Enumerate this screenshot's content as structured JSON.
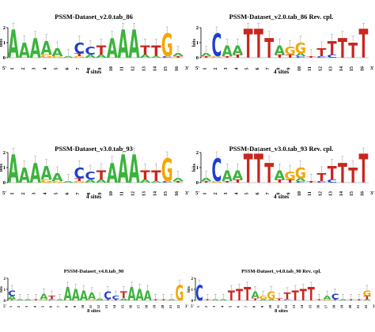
{
  "colors": {
    "A": "#3bb33b",
    "C": "#1d3fd1",
    "G": "#f2a700",
    "T": "#c8261e"
  },
  "axis": {
    "ylabel": "bits",
    "ticks": [
      "0",
      "1",
      "2"
    ],
    "five_prime": "5'",
    "three_prime": "3'"
  },
  "logos": [
    {
      "id": "v2-fwd",
      "title": "PSSM-Dataset_v2.0.tab_86",
      "sites": "4 sites",
      "positions": [
        [
          {
            "b": "A",
            "h": 1.9
          }
        ],
        [
          {
            "b": "A",
            "h": 1.0
          }
        ],
        [
          {
            "b": "A",
            "h": 1.3
          }
        ],
        [
          {
            "b": "A",
            "h": 0.9
          },
          {
            "b": "G",
            "h": 0.2
          }
        ],
        [
          {
            "b": "A",
            "h": 0.5
          },
          {
            "b": "G",
            "h": 0.1
          }
        ],
        [
          {
            "b": "A",
            "h": 0.1
          }
        ],
        [
          {
            "b": "C",
            "h": 0.7
          },
          {
            "b": "T",
            "h": 0.2
          },
          {
            "b": "G",
            "h": 0.1
          }
        ],
        [
          {
            "b": "C",
            "h": 0.5
          },
          {
            "b": "A",
            "h": 0.2
          }
        ],
        [
          {
            "b": "T",
            "h": 0.6
          },
          {
            "b": "A",
            "h": 0.2
          }
        ],
        [
          {
            "b": "A",
            "h": 1.3
          }
        ],
        [
          {
            "b": "A",
            "h": 1.9
          }
        ],
        [
          {
            "b": "A",
            "h": 1.9
          }
        ],
        [
          {
            "b": "T",
            "h": 0.6
          },
          {
            "b": "A",
            "h": 0.2
          }
        ],
        [
          {
            "b": "T",
            "h": 0.7
          },
          {
            "b": "A",
            "h": 0.1
          }
        ],
        [
          {
            "b": "G",
            "h": 1.5
          },
          {
            "b": "C",
            "h": 0.1
          }
        ],
        [
          {
            "b": "A",
            "h": 0.2
          },
          {
            "b": "T",
            "h": 0.1
          }
        ]
      ]
    },
    {
      "id": "v2-rev",
      "title": "PSSM-Dataset_v2.0.tab_86  Rev. cpl.",
      "sites": "4 sites",
      "positions": [
        [
          {
            "b": "A",
            "h": 0.2
          },
          {
            "b": "T",
            "h": 0.1
          }
        ],
        [
          {
            "b": "C",
            "h": 1.5
          },
          {
            "b": "G",
            "h": 0.1
          }
        ],
        [
          {
            "b": "A",
            "h": 0.7
          },
          {
            "b": "T",
            "h": 0.1
          }
        ],
        [
          {
            "b": "A",
            "h": 0.6
          },
          {
            "b": "T",
            "h": 0.2
          }
        ],
        [
          {
            "b": "T",
            "h": 1.9
          }
        ],
        [
          {
            "b": "T",
            "h": 1.9
          }
        ],
        [
          {
            "b": "T",
            "h": 1.3
          }
        ],
        [
          {
            "b": "A",
            "h": 0.6
          },
          {
            "b": "T",
            "h": 0.2
          }
        ],
        [
          {
            "b": "G",
            "h": 0.5
          },
          {
            "b": "T",
            "h": 0.2
          }
        ],
        [
          {
            "b": "G",
            "h": 0.7
          },
          {
            "b": "A",
            "h": 0.2
          },
          {
            "b": "C",
            "h": 0.1
          }
        ],
        [
          {
            "b": "T",
            "h": 0.1
          }
        ],
        [
          {
            "b": "T",
            "h": 0.5
          },
          {
            "b": "C",
            "h": 0.1
          }
        ],
        [
          {
            "b": "T",
            "h": 0.9
          },
          {
            "b": "C",
            "h": 0.2
          }
        ],
        [
          {
            "b": "T",
            "h": 1.3
          }
        ],
        [
          {
            "b": "T",
            "h": 1.0
          }
        ],
        [
          {
            "b": "T",
            "h": 1.9
          }
        ]
      ]
    },
    {
      "id": "v3-fwd",
      "title": "PSSM-Dataset_v3.0.tab_93",
      "sites": "4 sites",
      "positions": [
        [
          {
            "b": "A",
            "h": 1.9
          }
        ],
        [
          {
            "b": "A",
            "h": 1.0
          }
        ],
        [
          {
            "b": "A",
            "h": 1.3
          }
        ],
        [
          {
            "b": "A",
            "h": 0.9
          },
          {
            "b": "G",
            "h": 0.2
          }
        ],
        [
          {
            "b": "A",
            "h": 0.5
          },
          {
            "b": "G",
            "h": 0.1
          }
        ],
        [
          {
            "b": "A",
            "h": 0.1
          }
        ],
        [
          {
            "b": "C",
            "h": 0.7
          },
          {
            "b": "T",
            "h": 0.2
          },
          {
            "b": "G",
            "h": 0.1
          }
        ],
        [
          {
            "b": "C",
            "h": 0.5
          },
          {
            "b": "A",
            "h": 0.2
          }
        ],
        [
          {
            "b": "T",
            "h": 0.6
          },
          {
            "b": "A",
            "h": 0.2
          }
        ],
        [
          {
            "b": "A",
            "h": 1.3
          }
        ],
        [
          {
            "b": "A",
            "h": 1.9
          }
        ],
        [
          {
            "b": "A",
            "h": 1.9
          }
        ],
        [
          {
            "b": "T",
            "h": 0.6
          },
          {
            "b": "A",
            "h": 0.2
          }
        ],
        [
          {
            "b": "T",
            "h": 0.7
          },
          {
            "b": "A",
            "h": 0.1
          }
        ],
        [
          {
            "b": "G",
            "h": 1.5
          },
          {
            "b": "C",
            "h": 0.1
          }
        ],
        [
          {
            "b": "A",
            "h": 0.2
          },
          {
            "b": "T",
            "h": 0.1
          }
        ]
      ]
    },
    {
      "id": "v3-rev",
      "title": "PSSM-Dataset_v3.0.tab_93  Rev. cpl.",
      "sites": "4 sites",
      "positions": [
        [
          {
            "b": "A",
            "h": 0.2
          },
          {
            "b": "T",
            "h": 0.1
          }
        ],
        [
          {
            "b": "C",
            "h": 1.5
          },
          {
            "b": "G",
            "h": 0.1
          }
        ],
        [
          {
            "b": "A",
            "h": 0.7
          },
          {
            "b": "T",
            "h": 0.1
          }
        ],
        [
          {
            "b": "A",
            "h": 0.6
          },
          {
            "b": "T",
            "h": 0.2
          }
        ],
        [
          {
            "b": "T",
            "h": 1.9
          }
        ],
        [
          {
            "b": "T",
            "h": 1.9
          }
        ],
        [
          {
            "b": "T",
            "h": 1.3
          }
        ],
        [
          {
            "b": "A",
            "h": 0.6
          },
          {
            "b": "T",
            "h": 0.2
          }
        ],
        [
          {
            "b": "G",
            "h": 0.5
          },
          {
            "b": "T",
            "h": 0.2
          }
        ],
        [
          {
            "b": "G",
            "h": 0.7
          },
          {
            "b": "A",
            "h": 0.2
          },
          {
            "b": "C",
            "h": 0.1
          }
        ],
        [
          {
            "b": "T",
            "h": 0.1
          }
        ],
        [
          {
            "b": "T",
            "h": 0.5
          },
          {
            "b": "C",
            "h": 0.1
          }
        ],
        [
          {
            "b": "T",
            "h": 0.9
          },
          {
            "b": "C",
            "h": 0.2
          }
        ],
        [
          {
            "b": "T",
            "h": 1.3
          }
        ],
        [
          {
            "b": "T",
            "h": 1.0
          }
        ],
        [
          {
            "b": "T",
            "h": 1.9
          }
        ]
      ]
    },
    {
      "id": "v4-fwd",
      "title": "PSSM-Dataset_v4.0.tab_90",
      "sites": "8 sites",
      "positions": [
        [
          {
            "b": "C",
            "h": 0.5
          },
          {
            "b": "A",
            "h": 0.3
          },
          {
            "b": "T",
            "h": 0.1
          }
        ],
        [
          {
            "b": "A",
            "h": 0.1
          }
        ],
        [
          {
            "b": "A",
            "h": 0.1
          }
        ],
        [
          {
            "b": "T",
            "h": 0.1
          }
        ],
        [
          {
            "b": "A",
            "h": 0.5
          },
          {
            "b": "G",
            "h": 0.1
          }
        ],
        [
          {
            "b": "T",
            "h": 0.3
          },
          {
            "b": "C",
            "h": 0.1
          }
        ],
        [
          {
            "b": "A",
            "h": 0.1
          }
        ],
        [
          {
            "b": "A",
            "h": 1.2
          }
        ],
        [
          {
            "b": "A",
            "h": 1.0
          }
        ],
        [
          {
            "b": "A",
            "h": 0.9
          }
        ],
        [
          {
            "b": "A",
            "h": 0.6
          },
          {
            "b": "G",
            "h": 0.1
          }
        ],
        [
          {
            "b": "A",
            "h": 0.2
          }
        ],
        [
          {
            "b": "C",
            "h": 0.7
          },
          {
            "b": "T",
            "h": 0.1
          }
        ],
        [
          {
            "b": "C",
            "h": 0.3
          },
          {
            "b": "T",
            "h": 0.1
          }
        ],
        [
          {
            "b": "T",
            "h": 0.6
          },
          {
            "b": "A",
            "h": 0.2
          }
        ],
        [
          {
            "b": "A",
            "h": 1.2
          }
        ],
        [
          {
            "b": "A",
            "h": 1.0
          }
        ],
        [
          {
            "b": "A",
            "h": 0.9
          }
        ],
        [
          {
            "b": "T",
            "h": 0.1
          }
        ],
        [
          {
            "b": "T",
            "h": 0.1
          }
        ],
        [
          {
            "b": "A",
            "h": 0.1
          }
        ],
        [
          {
            "b": "G",
            "h": 1.4
          }
        ]
      ]
    },
    {
      "id": "v4-rev",
      "title": "PSSM-Dataset_v4.0.tab_90  Rev. cpl.",
      "sites": "8 sites",
      "positions": [
        [
          {
            "b": "C",
            "h": 1.4
          }
        ],
        [
          {
            "b": "T",
            "h": 0.1
          }
        ],
        [
          {
            "b": "A",
            "h": 0.1
          }
        ],
        [
          {
            "b": "A",
            "h": 0.1
          }
        ],
        [
          {
            "b": "T",
            "h": 0.9
          }
        ],
        [
          {
            "b": "T",
            "h": 1.0
          }
        ],
        [
          {
            "b": "T",
            "h": 1.2
          }
        ],
        [
          {
            "b": "A",
            "h": 0.6
          },
          {
            "b": "T",
            "h": 0.2
          }
        ],
        [
          {
            "b": "G",
            "h": 0.3
          },
          {
            "b": "A",
            "h": 0.1
          }
        ],
        [
          {
            "b": "G",
            "h": 0.7
          },
          {
            "b": "A",
            "h": 0.1
          }
        ],
        [
          {
            "b": "T",
            "h": 0.2
          }
        ],
        [
          {
            "b": "T",
            "h": 0.6
          },
          {
            "b": "C",
            "h": 0.1
          }
        ],
        [
          {
            "b": "T",
            "h": 0.9
          }
        ],
        [
          {
            "b": "T",
            "h": 1.0
          }
        ],
        [
          {
            "b": "T",
            "h": 1.2
          }
        ],
        [
          {
            "b": "T",
            "h": 0.1
          }
        ],
        [
          {
            "b": "A",
            "h": 0.3
          },
          {
            "b": "G",
            "h": 0.1
          }
        ],
        [
          {
            "b": "C",
            "h": 0.5
          },
          {
            "b": "T",
            "h": 0.1
          }
        ],
        [
          {
            "b": "A",
            "h": 0.1
          }
        ],
        [
          {
            "b": "T",
            "h": 0.1
          }
        ],
        [
          {
            "b": "T",
            "h": 0.1
          }
        ],
        [
          {
            "b": "G",
            "h": 0.5
          },
          {
            "b": "T",
            "h": 0.3
          },
          {
            "b": "A",
            "h": 0.1
          }
        ]
      ]
    }
  ]
}
